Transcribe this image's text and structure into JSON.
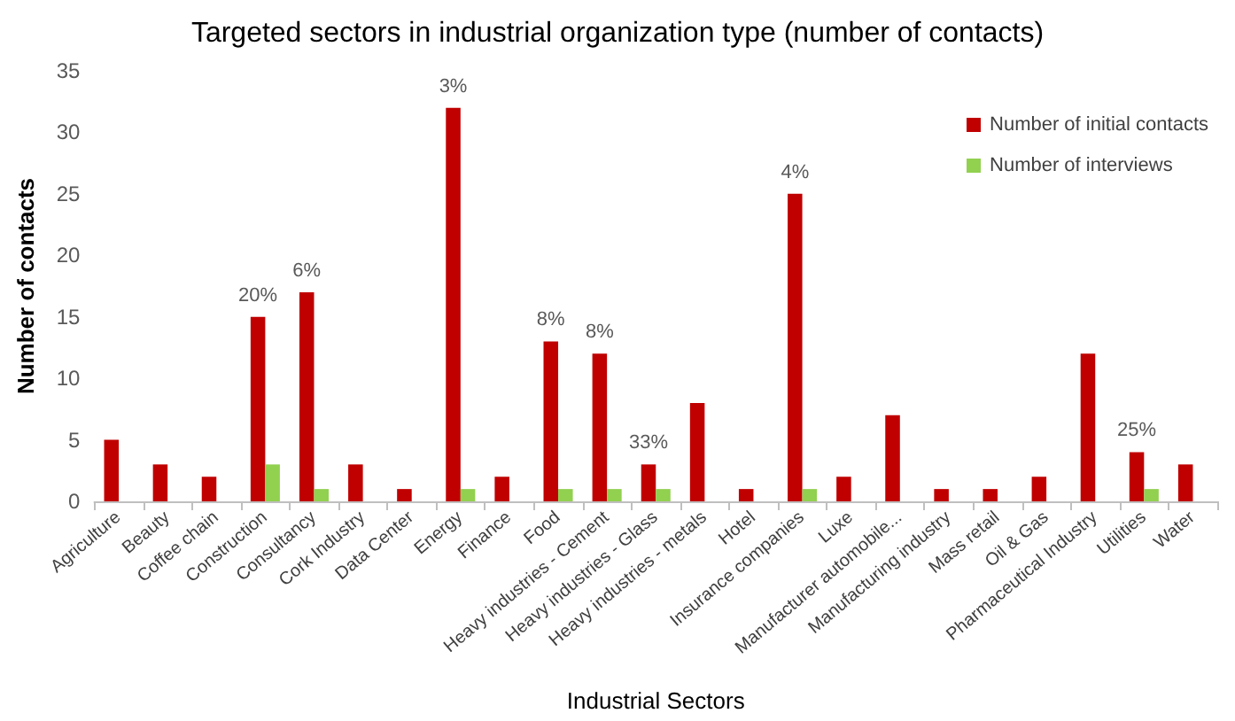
{
  "chart_data": {
    "type": "bar",
    "title": "Targeted sectors in industrial organization type (number of contacts)",
    "xlabel": "Industrial Sectors",
    "ylabel": "Number of contacts",
    "categories": [
      "Agriculture",
      "Beauty",
      "Coffee chain",
      "Construction",
      "Consultancy",
      "Cork Industry",
      "Data Center",
      "Energy",
      "Finance",
      "Food",
      "Heavy industries - Cement",
      "Heavy industries - Glass",
      "Heavy industries - metals",
      "Hotel",
      "Insurance companies",
      "Luxe",
      "Manufacturer automobile...",
      "Manufacturing industry",
      "Mass retail",
      "Oil & Gas",
      "Pharmaceutical Industry",
      "Utilities",
      "Water"
    ],
    "series": [
      {
        "name": "Number of initial contacts",
        "color": "#c00000",
        "values": [
          5,
          3,
          2,
          15,
          17,
          3,
          1,
          32,
          2,
          13,
          12,
          3,
          8,
          1,
          25,
          2,
          7,
          1,
          1,
          2,
          12,
          4,
          3
        ]
      },
      {
        "name": "Number of interviews",
        "color": "#92d050",
        "values": [
          0,
          0,
          0,
          3,
          1,
          0,
          0,
          1,
          0,
          1,
          1,
          1,
          0,
          0,
          1,
          0,
          0,
          0,
          0,
          0,
          0,
          1,
          0
        ]
      }
    ],
    "annotations": [
      {
        "text": "20%",
        "x": "Construction",
        "y": 15
      },
      {
        "text": "6%",
        "x": "Consultancy",
        "y": 17
      },
      {
        "text": "3%",
        "x": "Energy",
        "y": 32
      },
      {
        "text": "8%",
        "x": "Food",
        "y": 13
      },
      {
        "text": "8%",
        "x": "Heavy industries - Cement",
        "y": 12
      },
      {
        "text": "33%",
        "x": "Heavy industries - Glass",
        "y": 3
      },
      {
        "text": "4%",
        "x": "Insurance companies",
        "y": 25
      },
      {
        "text": "25%",
        "x": "Utilities",
        "y": 4
      }
    ],
    "ylim": [
      0,
      35
    ],
    "yticks": [
      0,
      5,
      10,
      15,
      20,
      25,
      30,
      35
    ],
    "grid": false,
    "legend": "top right"
  }
}
